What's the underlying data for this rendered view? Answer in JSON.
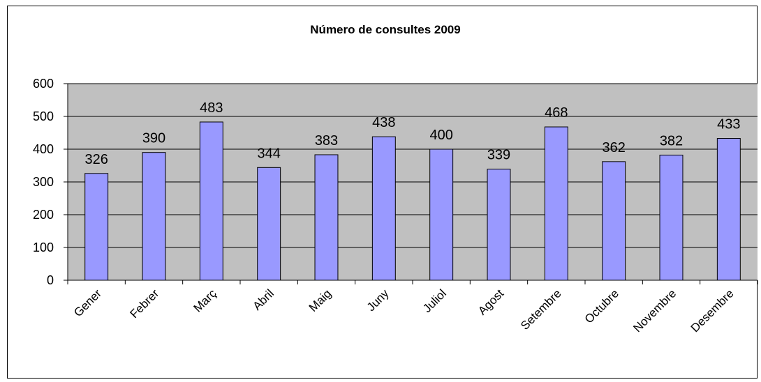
{
  "chart_data": {
    "type": "bar",
    "title": "Número de consultes 2009",
    "categories": [
      "Gener",
      "Febrer",
      "Març",
      "Abril",
      "Maig",
      "Juny",
      "Juliol",
      "Agost",
      "Setembre",
      "Octubre",
      "Novembre",
      "Desembre"
    ],
    "values": [
      326,
      390,
      483,
      344,
      383,
      438,
      400,
      339,
      468,
      362,
      382,
      433
    ],
    "ylim": [
      0,
      600
    ],
    "yticks": [
      "0",
      "100",
      "200",
      "300",
      "400",
      "500",
      "600"
    ],
    "grid": true,
    "legend": "none",
    "colors": {
      "bar_fill": "#9999ff",
      "bar_stroke": "#000000",
      "plot_bg": "#c0c0c0",
      "grid": "#000000"
    }
  }
}
